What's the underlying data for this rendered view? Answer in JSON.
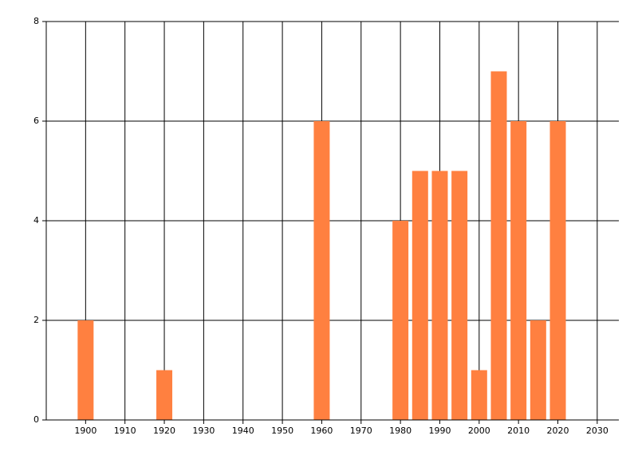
{
  "chart_data": {
    "type": "bar",
    "x": [
      1900,
      1920,
      1960,
      1980,
      1985,
      1990,
      1995,
      2000,
      2005,
      2010,
      2015,
      2020
    ],
    "values": [
      2,
      1,
      6,
      4,
      5,
      5,
      5,
      1,
      7,
      6,
      2,
      6
    ],
    "color": "#ff8040",
    "xlim": [
      1890,
      2035.5
    ],
    "xticks": [
      1900,
      1910,
      1920,
      1930,
      1940,
      1950,
      1960,
      1970,
      1980,
      1990,
      2000,
      2010,
      2020,
      2030
    ],
    "ylim": [
      0,
      8
    ],
    "yticks": [
      0,
      2,
      4,
      6,
      8
    ],
    "grid": true
  }
}
